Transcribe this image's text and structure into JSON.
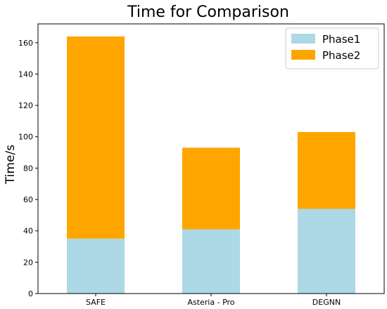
{
  "chart_data": {
    "type": "bar",
    "stacked": true,
    "title": "Time for Comparison",
    "xlabel": "",
    "ylabel": "Time/s",
    "categories": [
      "SAFE",
      "Asteria - Pro",
      "DEGNN"
    ],
    "series": [
      {
        "name": "Phase1",
        "color": "#add8e6",
        "values": [
          35,
          41,
          54
        ]
      },
      {
        "name": "Phase2",
        "color": "#ffa500",
        "values": [
          129,
          52,
          49
        ]
      }
    ],
    "ylim": [
      0,
      172
    ],
    "yticks": [
      0,
      20,
      40,
      60,
      80,
      100,
      120,
      140,
      160
    ],
    "grid": false,
    "legend_position": "top-right"
  }
}
